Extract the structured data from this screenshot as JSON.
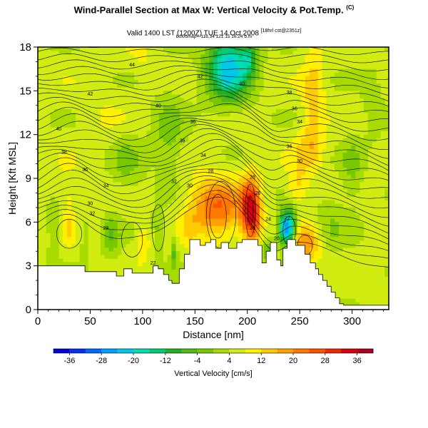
{
  "title": "Wind-Parallel Section at Max W: Vertical Velocity & Pot.Temp.",
  "title_mark": "(C)",
  "subtitle": "Valid 1400 LST (1200Z) TUE 14 Oct 2008",
  "subtitle_mark": "[18hrl cst@2351z]",
  "subtitle2": "box/dmap=-118.34 121.15 16.24 b.m",
  "chart_data": {
    "type": "heatmap",
    "xlabel": "Distance [nm]",
    "ylabel": "Height [Kft MSL]",
    "xlim": [
      0,
      335
    ],
    "ylim": [
      0,
      18
    ],
    "xticks": [
      0,
      50,
      100,
      150,
      200,
      250,
      300
    ],
    "yticks": [
      0,
      3,
      6,
      9,
      12,
      15,
      18
    ],
    "colorbar": {
      "label": "Vertical Velocity [cm/s]",
      "ticks": [
        -36,
        -28,
        -20,
        -12,
        -4,
        4,
        12,
        20,
        28,
        36
      ],
      "range": [
        -40,
        40
      ],
      "bin_width": 4
    },
    "contour_labels": [
      {
        "text": "44",
        "x": 90,
        "y": 16.8
      },
      {
        "text": "42",
        "x": 155,
        "y": 16.0
      },
      {
        "text": "40",
        "x": 195,
        "y": 15.5
      },
      {
        "text": "38",
        "x": 240,
        "y": 14.9
      },
      {
        "text": "42",
        "x": 50,
        "y": 14.8
      },
      {
        "text": "40",
        "x": 115,
        "y": 14.0
      },
      {
        "text": "36",
        "x": 245,
        "y": 13.8
      },
      {
        "text": "34",
        "x": 250,
        "y": 12.9
      },
      {
        "text": "36",
        "x": 148,
        "y": 12.9
      },
      {
        "text": "40",
        "x": 20,
        "y": 12.4
      },
      {
        "text": "36",
        "x": 138,
        "y": 11.6
      },
      {
        "text": "36",
        "x": 240,
        "y": 11.2
      },
      {
        "text": "38",
        "x": 25,
        "y": 10.8
      },
      {
        "text": "34",
        "x": 158,
        "y": 10.6
      },
      {
        "text": "30",
        "x": 250,
        "y": 10.2
      },
      {
        "text": "36",
        "x": 45,
        "y": 9.6
      },
      {
        "text": "28",
        "x": 165,
        "y": 9.5
      },
      {
        "text": "28",
        "x": 205,
        "y": 9.1
      },
      {
        "text": "32",
        "x": 130,
        "y": 8.8
      },
      {
        "text": "34",
        "x": 65,
        "y": 8.5
      },
      {
        "text": "30",
        "x": 145,
        "y": 8.5
      },
      {
        "text": "26",
        "x": 210,
        "y": 8.0
      },
      {
        "text": "30",
        "x": 50,
        "y": 7.3
      },
      {
        "text": "32",
        "x": 52,
        "y": 6.6
      },
      {
        "text": "24",
        "x": 220,
        "y": 6.2
      },
      {
        "text": "22",
        "x": 238,
        "y": 6.3
      },
      {
        "text": "28",
        "x": 65,
        "y": 5.6
      },
      {
        "text": "26",
        "x": 205,
        "y": 5.6
      },
      {
        "text": "20",
        "x": 228,
        "y": 4.9
      },
      {
        "text": "22",
        "x": 110,
        "y": 3.2
      }
    ]
  }
}
